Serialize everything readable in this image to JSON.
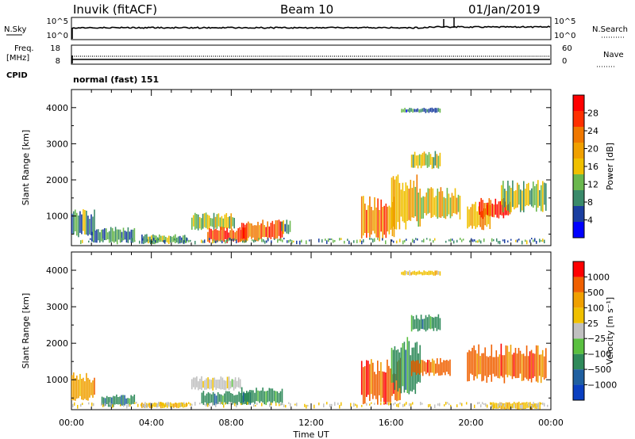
{
  "header": {
    "site": "Inuvik (fitACF)",
    "beam": "Beam 10",
    "date": "01/Jan/2019"
  },
  "noise_panel": {
    "left_label": "N.Sky",
    "left_ticks": [
      "10^5",
      "10^0"
    ],
    "right_ticks": [
      "10^5",
      "10^0"
    ],
    "right_label": "N.Search"
  },
  "freq_panel": {
    "left_label_1": "Freq.",
    "left_label_2": "[MHz]",
    "left_ticks": [
      "18",
      "8"
    ],
    "right_ticks": [
      "60",
      "0"
    ],
    "right_label": "Nave"
  },
  "cpid": {
    "label": "CPID",
    "value": "normal (fast) 151"
  },
  "colors": {
    "power_scale": [
      "#0000ff",
      "#1a3ea0",
      "#3a8a6a",
      "#6ab84e",
      "#f0c000",
      "#f0a000",
      "#f07800",
      "#ff3000",
      "#ff0000"
    ],
    "velocity_scale": [
      "#0a3fc0",
      "#1f5fa0",
      "#2f8a5a",
      "#5ac040",
      "#c0c0c0",
      "#f0c000",
      "#f0a000",
      "#f06000",
      "#ff0000"
    ]
  },
  "chart_data": [
    {
      "type": "heatmap",
      "title": "",
      "ylabel": "Slant Range [km]",
      "yticks": [
        "4000",
        "3000",
        "2000",
        "1000"
      ],
      "ylim": [
        180,
        4500
      ],
      "xlim": [
        0,
        24
      ],
      "colorbar_label": "Power [dB]",
      "colorbar_ticks": [
        "28",
        "24",
        "20",
        "16",
        "12",
        "8",
        "4"
      ],
      "colorbar_range": [
        0,
        32
      ],
      "regions": [
        {
          "t0": 0.0,
          "t1": 1.2,
          "r0": 400,
          "r1": 1200,
          "level": 10
        },
        {
          "t0": 1.0,
          "t1": 3.2,
          "r0": 250,
          "r1": 700,
          "level": 9
        },
        {
          "t0": 3.5,
          "t1": 5.8,
          "r0": 220,
          "r1": 500,
          "level": 11
        },
        {
          "t0": 6.0,
          "t1": 8.2,
          "r0": 600,
          "r1": 1100,
          "level": 14
        },
        {
          "t0": 6.8,
          "t1": 8.8,
          "r0": 250,
          "r1": 700,
          "level": 27
        },
        {
          "t0": 8.5,
          "t1": 10.6,
          "r0": 300,
          "r1": 900,
          "level": 25
        },
        {
          "t0": 10.5,
          "t1": 11.0,
          "r0": 500,
          "r1": 900,
          "level": 12
        },
        {
          "t0": 14.5,
          "t1": 16.2,
          "r0": 300,
          "r1": 1600,
          "level": 22
        },
        {
          "t0": 16.0,
          "t1": 17.5,
          "r0": 600,
          "r1": 2200,
          "level": 18
        },
        {
          "t0": 17.5,
          "t1": 19.5,
          "r0": 900,
          "r1": 1800,
          "level": 17
        },
        {
          "t0": 17.0,
          "t1": 18.5,
          "r0": 2300,
          "r1": 2800,
          "level": 14
        },
        {
          "t0": 19.8,
          "t1": 21.0,
          "r0": 600,
          "r1": 1400,
          "level": 20
        },
        {
          "t0": 20.4,
          "t1": 22.0,
          "r0": 900,
          "r1": 1500,
          "level": 28
        },
        {
          "t0": 21.5,
          "t1": 23.8,
          "r0": 1100,
          "r1": 2000,
          "level": 13
        },
        {
          "t0": 16.5,
          "t1": 18.5,
          "r0": 3850,
          "r1": 4000,
          "level": 8
        }
      ]
    },
    {
      "type": "heatmap",
      "title": "",
      "ylabel": "Slant Range [km]",
      "yticks": [
        "4000",
        "3000",
        "2000",
        "1000"
      ],
      "ylim": [
        180,
        4500
      ],
      "xlim": [
        0,
        24
      ],
      "colorbar_label": "Velocity [m s⁻¹]",
      "colorbar_ticks": [
        "1000",
        "500",
        "100",
        "25",
        "−25",
        "−100",
        "−500",
        "−1000"
      ],
      "regions": [
        {
          "t0": 0.0,
          "t1": 1.2,
          "r0": 400,
          "r1": 1200,
          "class": 6
        },
        {
          "t0": 1.5,
          "t1": 3.2,
          "r0": 250,
          "r1": 600,
          "class": 2
        },
        {
          "t0": 3.5,
          "t1": 5.8,
          "r0": 220,
          "r1": 400,
          "class": 5
        },
        {
          "t0": 6.0,
          "t1": 8.5,
          "r0": 700,
          "r1": 1100,
          "class": 4
        },
        {
          "t0": 6.5,
          "t1": 9.0,
          "r0": 300,
          "r1": 700,
          "class": 2
        },
        {
          "t0": 8.5,
          "t1": 10.6,
          "r0": 300,
          "r1": 800,
          "class": 2
        },
        {
          "t0": 14.5,
          "t1": 16.5,
          "r0": 300,
          "r1": 1600,
          "class": 7
        },
        {
          "t0": 16.0,
          "t1": 17.5,
          "r0": 600,
          "r1": 2200,
          "class": 2
        },
        {
          "t0": 17.0,
          "t1": 19.0,
          "r0": 1100,
          "r1": 1600,
          "class": 7
        },
        {
          "t0": 17.0,
          "t1": 18.5,
          "r0": 2300,
          "r1": 2800,
          "class": 2
        },
        {
          "t0": 19.8,
          "t1": 23.8,
          "r0": 900,
          "r1": 2000,
          "class": 7
        },
        {
          "t0": 21.0,
          "t1": 23.5,
          "r0": 180,
          "r1": 400,
          "class": 5
        },
        {
          "t0": 16.5,
          "t1": 18.5,
          "r0": 3850,
          "r1": 4000,
          "class": 5
        }
      ]
    }
  ],
  "x_axis": {
    "ticks": [
      "00:00",
      "04:00",
      "08:00",
      "12:00",
      "16:00",
      "20:00",
      "00:00"
    ],
    "label": "Time UT"
  }
}
